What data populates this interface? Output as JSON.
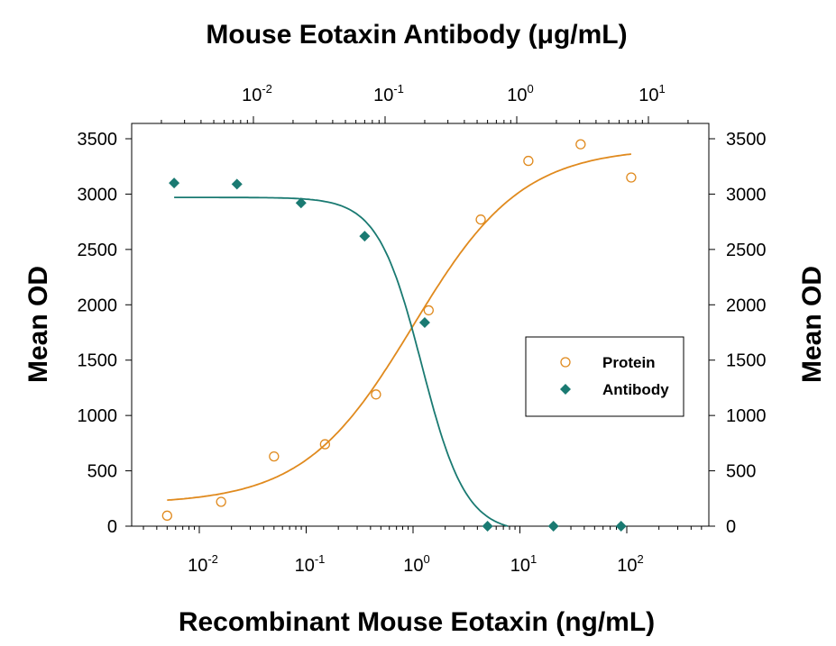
{
  "chart_data": {
    "type": "scatter",
    "title": "",
    "top_xlabel": "Mouse Eotaxin Antibody (μg/mL)",
    "xlabel": "Recombinant Mouse Eotaxin (ng/mL)",
    "ylabel": "Mean OD",
    "ylabel_right": "Mean OD",
    "x_scale": "log",
    "xlim": [
      0.003,
      700
    ],
    "top_x_scale": "log",
    "top_xlim": [
      0.002,
      20
    ],
    "ylim": [
      0,
      3600
    ],
    "y_ticks": [
      0,
      500,
      1000,
      1500,
      2000,
      2500,
      3000,
      3500
    ],
    "bottom_ticks": [
      {
        "base": "10",
        "exp": "-2",
        "value": 0.01
      },
      {
        "base": "10",
        "exp": "-1",
        "value": 0.1
      },
      {
        "base": "10",
        "exp": "0",
        "value": 1
      },
      {
        "base": "10",
        "exp": "1",
        "value": 10
      },
      {
        "base": "10",
        "exp": "2",
        "value": 100
      }
    ],
    "top_ticks": [
      {
        "base": "10",
        "exp": "-2",
        "value": 0.01
      },
      {
        "base": "10",
        "exp": "-1",
        "value": 0.1
      },
      {
        "base": "10",
        "exp": "0",
        "value": 1
      },
      {
        "base": "10",
        "exp": "1",
        "value": 10
      }
    ],
    "grid": false,
    "legend_position": "right-middle",
    "series": [
      {
        "name": "Protein",
        "marker": "open-circle",
        "color": "#e08a1e",
        "axis": "bottom",
        "x": [
          0.005,
          0.016,
          0.05,
          0.15,
          0.45,
          1.4,
          4.3,
          12,
          37,
          110
        ],
        "y": [
          95,
          220,
          630,
          740,
          1190,
          1950,
          2770,
          3300,
          3450,
          3150
        ],
        "fit": {
          "bottom": 200,
          "top": 3420,
          "ec50": 1.0,
          "hill": 0.85
        }
      },
      {
        "name": "Antibody",
        "marker": "filled-diamond",
        "color": "#1a7a72",
        "axis": "top",
        "x": [
          0.0025,
          0.0075,
          0.023,
          0.07,
          0.2,
          0.6,
          1.9,
          6.2
        ],
        "y": [
          3100,
          3090,
          2920,
          2620,
          1840,
          0,
          0,
          0
        ],
        "fit": {
          "bottom": -60,
          "top": 2970,
          "ic50": 0.19,
          "hill": 2.6
        }
      }
    ]
  }
}
